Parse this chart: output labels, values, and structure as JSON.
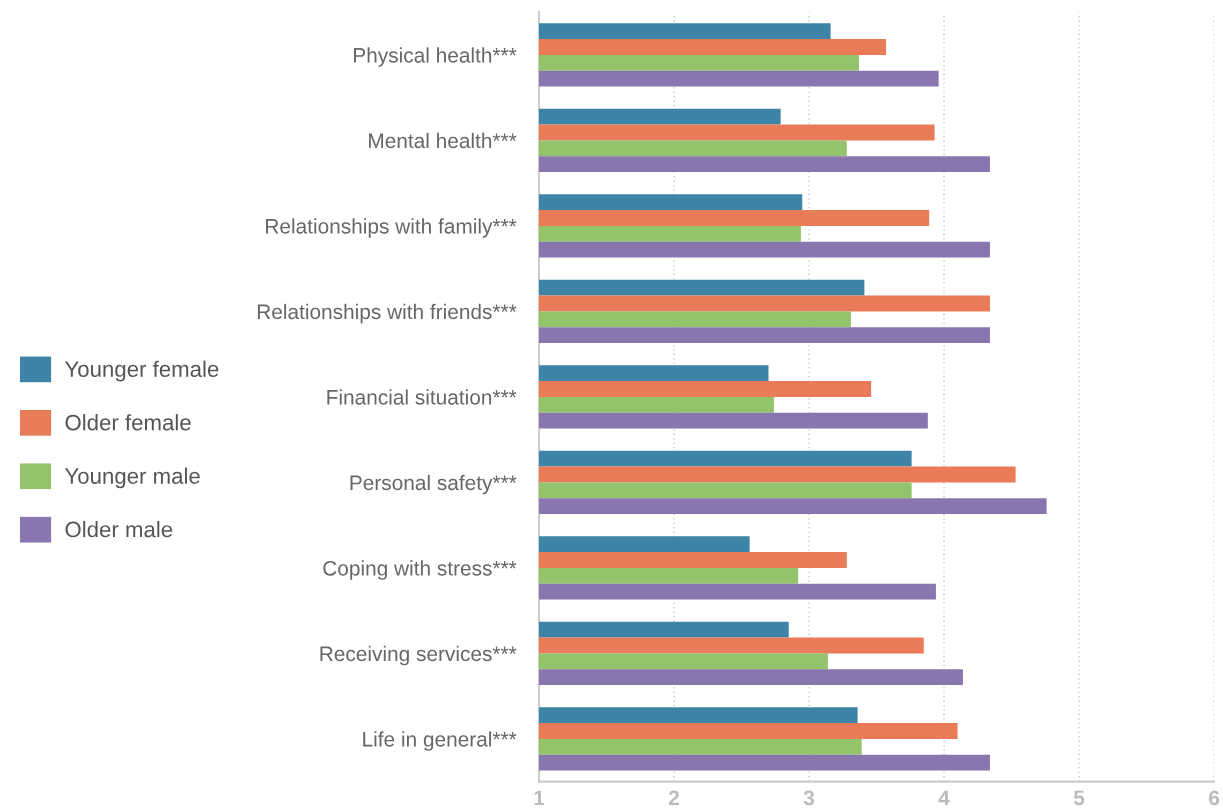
{
  "chart_data": {
    "type": "bar",
    "orientation": "horizontal",
    "categories": [
      "Physical health***",
      "Mental health***",
      "Relationships with family***",
      "Relationships with friends***",
      "Financial situation***",
      "Personal safety***",
      "Coping with stress***",
      "Receiving services***",
      "Life in general***"
    ],
    "series": [
      {
        "name": "Younger female",
        "color": "#3d84a6",
        "values": [
          3.16,
          2.79,
          2.95,
          3.41,
          2.7,
          3.76,
          2.56,
          2.85,
          3.36
        ]
      },
      {
        "name": "Older female",
        "color": "#e97b59",
        "values": [
          3.57,
          3.93,
          3.89,
          4.34,
          3.46,
          4.53,
          3.28,
          3.85,
          4.1
        ]
      },
      {
        "name": "Younger male",
        "color": "#93c46b",
        "values": [
          3.37,
          3.28,
          2.94,
          3.31,
          2.74,
          3.76,
          2.92,
          3.14,
          3.39
        ]
      },
      {
        "name": "Older male",
        "color": "#8a76ae",
        "values": [
          3.96,
          4.34,
          4.34,
          4.34,
          3.88,
          4.76,
          3.94,
          4.14,
          4.34
        ]
      }
    ],
    "xlim": [
      1,
      6
    ],
    "xticks": [
      1,
      2,
      3,
      4,
      5,
      6
    ],
    "grid": "x",
    "legend": "left"
  }
}
